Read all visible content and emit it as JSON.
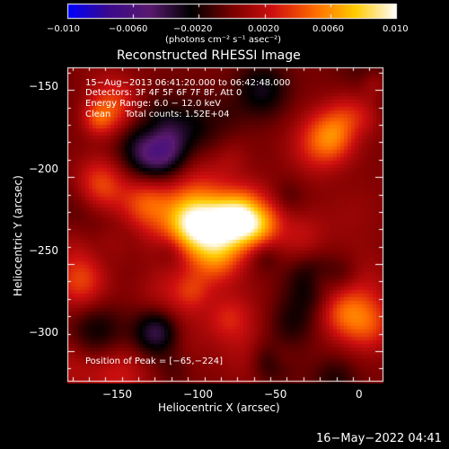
{
  "colorbar": {
    "ticks": [
      "−0.010",
      "−0.0060",
      "−0.0020",
      "0.0020",
      "0.0060",
      "0.010"
    ],
    "units_label": "(photons cm⁻² s⁻¹ asec⁻²)"
  },
  "image_title": "Reconstructed RHESSI Image",
  "info": {
    "line1": "15−Aug−2013 06:41:20.000 to 06:42:48.000",
    "line2": "Detectors: 3F 4F 5F 6F 7F 8F, Att 0",
    "line3": "Energy Range: 6.0 − 12.0 keV",
    "line4": "Clean     Total counts: 1.52E+04"
  },
  "peak_label": "Position of Peak = [−65,−224]",
  "footer_timestamp": "16−May−2022 04:41",
  "chart_data": {
    "type": "heatmap",
    "title": "Reconstructed RHESSI Image",
    "xlabel": "Heliocentric X (arcsec)",
    "ylabel": "Heliocentric Y (arcsec)",
    "xlim": [
      -178,
      13
    ],
    "ylim": [
      -317,
      -137
    ],
    "x_ticks": [
      -150,
      -100,
      -50,
      0
    ],
    "x_tick_labels": [
      "−150",
      "−100",
      "−50",
      "0"
    ],
    "y_ticks": [
      -150,
      -200,
      -250,
      -300
    ],
    "y_tick_labels": [
      "−150",
      "−200",
      "−250",
      "−300"
    ],
    "color_range": [
      -0.01,
      0.01
    ],
    "colormap": [
      "#0000ff",
      "#3b0a8c",
      "#5a1a70",
      "#000000",
      "#7a0000",
      "#d01010",
      "#ff6a00",
      "#ffcc00",
      "#ffffff"
    ],
    "peak_position": [
      -65,
      -224
    ],
    "sources": [
      {
        "x": -65,
        "y": -224,
        "amp": 0.0095
      },
      {
        "x": -82,
        "y": -226,
        "amp": 0.0072
      },
      {
        "x": -102,
        "y": -229,
        "amp": 0.0062
      },
      {
        "x": -88,
        "y": -246,
        "amp": 0.0048
      },
      {
        "x": -130,
        "y": -215,
        "amp": 0.0045
      },
      {
        "x": -158,
        "y": -205,
        "amp": 0.0048
      },
      {
        "x": -150,
        "y": -160,
        "amp": 0.004
      },
      {
        "x": -170,
        "y": -260,
        "amp": 0.0035
      },
      {
        "x": 0,
        "y": -160,
        "amp": 0.0042
      },
      {
        "x": -20,
        "y": -178,
        "amp": 0.003
      },
      {
        "x": 5,
        "y": -285,
        "amp": 0.003
      },
      {
        "x": -30,
        "y": -260,
        "amp": -0.003
      },
      {
        "x": -40,
        "y": -285,
        "amp": -0.0032
      },
      {
        "x": -60,
        "y": -150,
        "amp": -0.003
      },
      {
        "x": -160,
        "y": -290,
        "amp": -0.003
      },
      {
        "x": -125,
        "y": -290,
        "amp": -0.0035
      }
    ]
  }
}
